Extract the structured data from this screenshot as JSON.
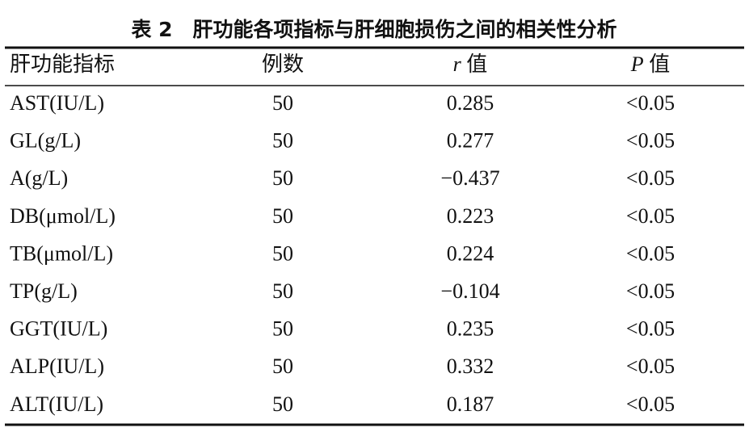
{
  "title": "表 2　肝功能各项指标与肝细胞损伤之间的相关性分析",
  "table": {
    "header": [
      "肝功能指标",
      "例数",
      [
        "r",
        " 值"
      ],
      [
        "P",
        " 值"
      ]
    ],
    "rows": [
      [
        "AST(IU/L)",
        "50",
        "0.285",
        "<0.05"
      ],
      [
        "GL(g/L)",
        "50",
        "0.277",
        "<0.05"
      ],
      [
        "A(g/L)",
        "50",
        "−0.437",
        "<0.05"
      ],
      [
        "DB(μmol/L)",
        "50",
        "0.223",
        "<0.05"
      ],
      [
        "TB(μmol/L)",
        "50",
        "0.224",
        "<0.05"
      ],
      [
        "TP(g/L)",
        "50",
        "−0.104",
        "<0.05"
      ],
      [
        "GGT(IU/L)",
        "50",
        "0.235",
        "<0.05"
      ],
      [
        "ALP(IU/L)",
        "50",
        "0.332",
        "<0.05"
      ],
      [
        "ALT(IU/L)",
        "50",
        "0.187",
        "<0.05"
      ]
    ]
  }
}
